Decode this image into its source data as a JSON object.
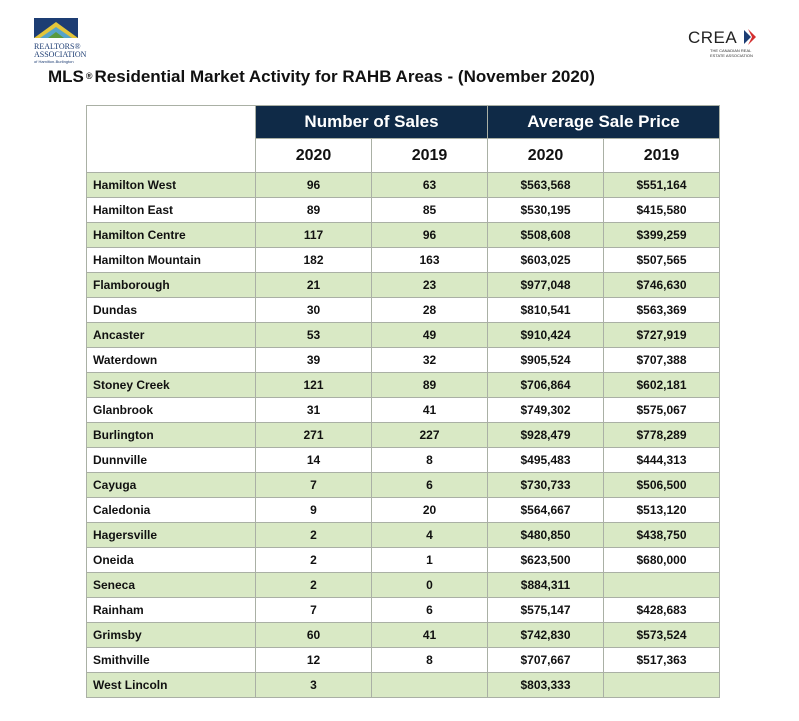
{
  "header": {
    "left_logo": {
      "line1": "REALTORS®",
      "line2": "ASSOCIATION",
      "line3": "of Hamilton-Burlington"
    },
    "right_logo": {
      "name": "CREA",
      "subtitle": "THE CANADIAN REAL ESTATE ASSOCIATION"
    },
    "title": {
      "prefix": "MLS",
      "mark": "®",
      "text": "Residential Market Activity for RAHB Areas - (November 2020)"
    }
  },
  "table": {
    "groups": [
      "Number of Sales",
      "Average Sale Price"
    ],
    "years": [
      "2020",
      "2019",
      "2020",
      "2019"
    ],
    "rows": [
      [
        "Hamilton West",
        "96",
        "63",
        "$563,568",
        "$551,164"
      ],
      [
        "Hamilton East",
        "89",
        "85",
        "$530,195",
        "$415,580"
      ],
      [
        "Hamilton Centre",
        "117",
        "96",
        "$508,608",
        "$399,259"
      ],
      [
        "Hamilton Mountain",
        "182",
        "163",
        "$603,025",
        "$507,565"
      ],
      [
        "Flamborough",
        "21",
        "23",
        "$977,048",
        "$746,630"
      ],
      [
        "Dundas",
        "30",
        "28",
        "$810,541",
        "$563,369"
      ],
      [
        "Ancaster",
        "53",
        "49",
        "$910,424",
        "$727,919"
      ],
      [
        "Waterdown",
        "39",
        "32",
        "$905,524",
        "$707,388"
      ],
      [
        "Stoney Creek",
        "121",
        "89",
        "$706,864",
        "$602,181"
      ],
      [
        "Glanbrook",
        "31",
        "41",
        "$749,302",
        "$575,067"
      ],
      [
        "Burlington",
        "271",
        "227",
        "$928,479",
        "$778,289"
      ],
      [
        "Dunnville",
        "14",
        "8",
        "$495,483",
        "$444,313"
      ],
      [
        "Cayuga",
        "7",
        "6",
        "$730,733",
        "$506,500"
      ],
      [
        "Caledonia",
        "9",
        "20",
        "$564,667",
        "$513,120"
      ],
      [
        "Hagersville",
        "2",
        "4",
        "$480,850",
        "$438,750"
      ],
      [
        "Oneida",
        "2",
        "1",
        "$623,500",
        "$680,000"
      ],
      [
        "Seneca",
        "2",
        "0",
        "$884,311",
        null
      ],
      [
        "Rainham",
        "7",
        "6",
        "$575,147",
        "$428,683"
      ],
      [
        "Grimsby",
        "60",
        "41",
        "$742,830",
        "$573,524"
      ],
      [
        "Smithville",
        "12",
        "8",
        "$707,667",
        "$517,363"
      ],
      [
        "West Lincoln",
        "3",
        null,
        "$803,333",
        null
      ]
    ]
  }
}
